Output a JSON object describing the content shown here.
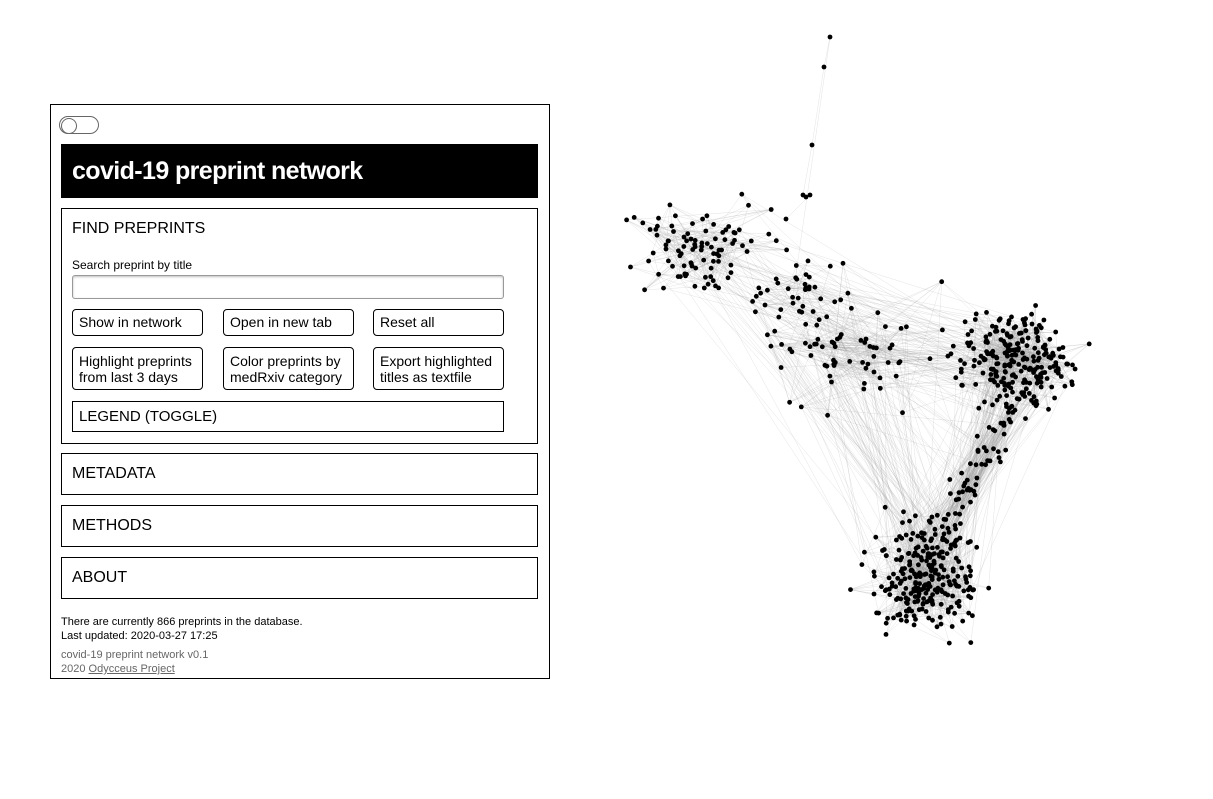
{
  "app": {
    "title": "covid-19 preprint network"
  },
  "find": {
    "header": "FIND PREPRINTS",
    "search_label": "Search preprint by title",
    "search_value": "",
    "search_placeholder": "",
    "buttons": {
      "show_in_network": "Show in network",
      "open_new_tab": "Open in new tab",
      "reset_all": "Reset all",
      "highlight_line1": "Highlight preprints",
      "highlight_line2": "from last 3 days",
      "color_line1": "Color preprints by",
      "color_line2": "medRxiv category",
      "export_line1": "Export highlighted",
      "export_line2": "titles as textfile"
    },
    "legend_toggle": "LEGEND (TOGGLE)"
  },
  "sections": {
    "metadata": "METADATA",
    "methods": "METHODS",
    "about": "ABOUT"
  },
  "footer": {
    "count_text": "There are currently 866 preprints in the database.",
    "updated_text": "Last updated: 2020-03-27 17:25",
    "version_text": "covid-19 preprint network v0.1",
    "year": "2020",
    "project_link": "Odycceus Project"
  },
  "network": {
    "node_color": "#000000",
    "edge_color": "#999999",
    "background": "#ffffff"
  }
}
